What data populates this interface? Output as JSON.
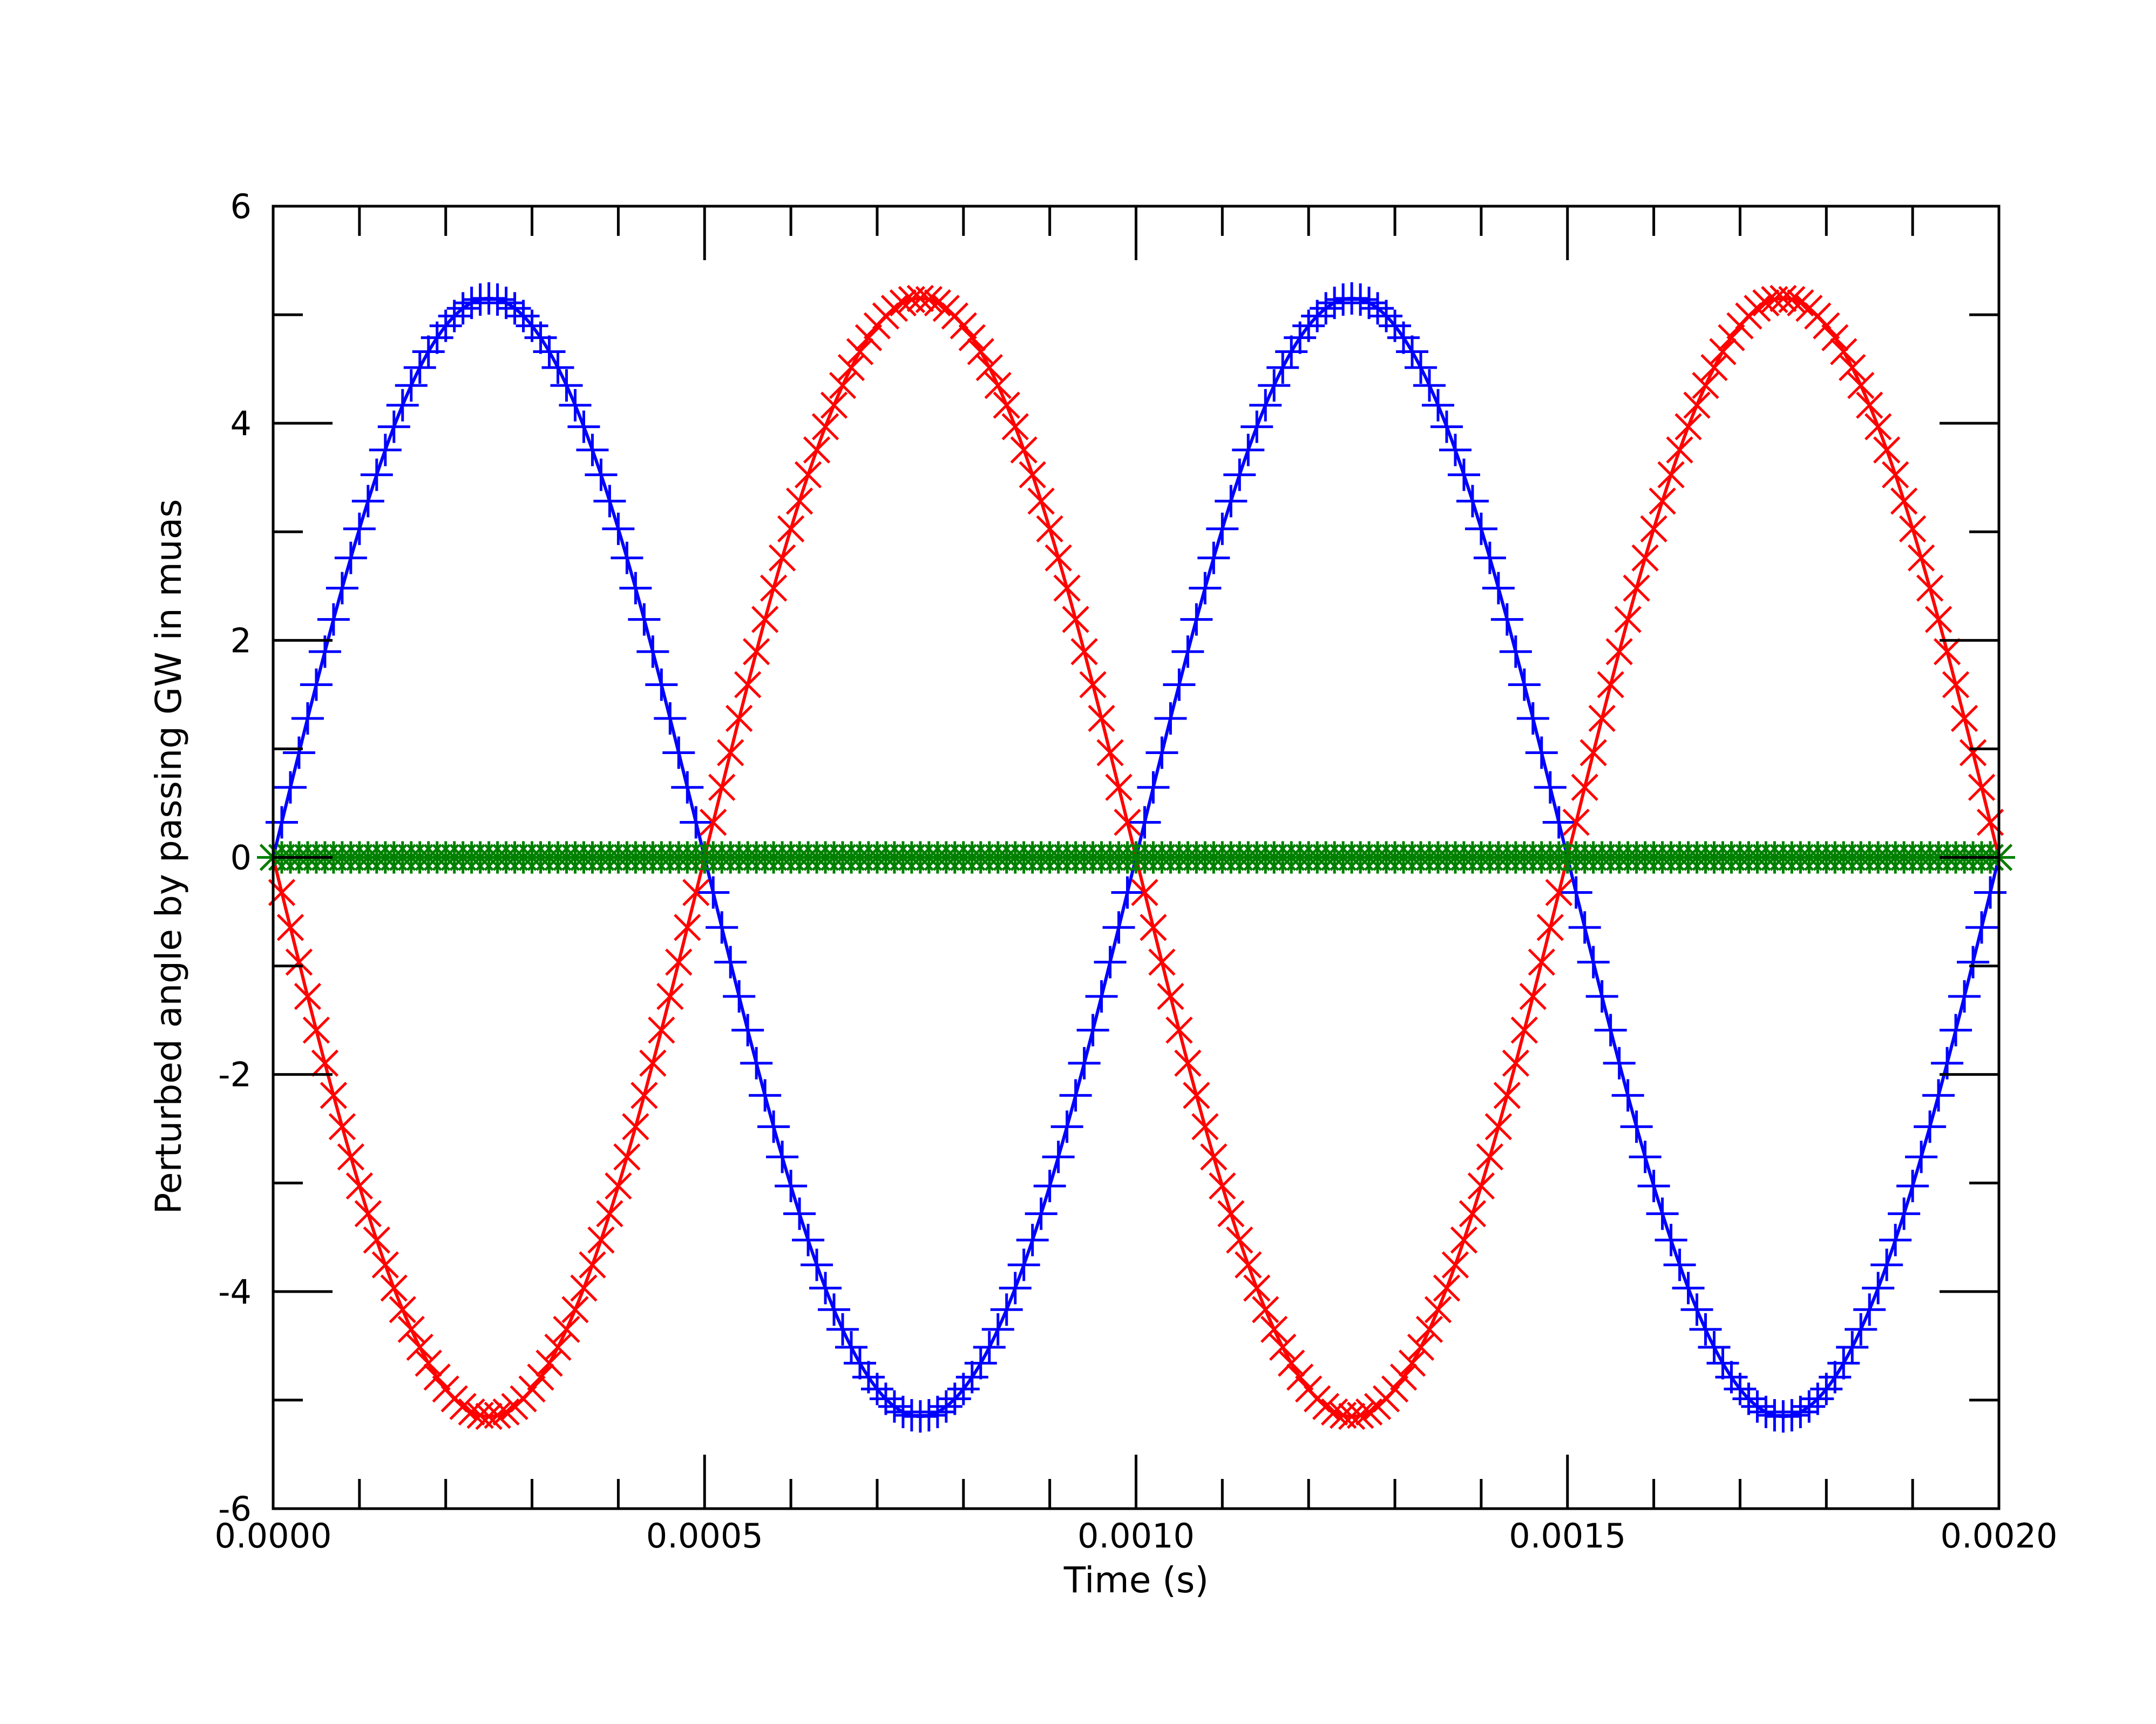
{
  "chart_data": {
    "type": "line",
    "title": "",
    "xlabel": "Time (s)",
    "ylabel": "Perturbed angle by passing GW in muas",
    "xlim": [
      0,
      0.002
    ],
    "ylim": [
      -6,
      6
    ],
    "x_ticks": [
      "0.0000",
      "0.0005",
      "0.0010",
      "0.0015",
      "0.0020"
    ],
    "y_ticks": [
      "6",
      "4",
      "2",
      "0",
      "-2",
      "-4",
      "-6"
    ],
    "grid": false,
    "legend": "none",
    "sample_count": 201,
    "series": [
      {
        "color": "#0000ff",
        "marker": "plus",
        "function": "5.15 * sin(2*pi*1000*t)",
        "amplitude": 5.15,
        "frequency_hz": 1000,
        "phase_sign": 1,
        "values": [
          0,
          5.15,
          0,
          -5.15,
          0,
          5.15,
          0,
          -5.15,
          0
        ],
        "x": [
          0,
          0.00025,
          0.0005,
          0.00075,
          0.001,
          0.00125,
          0.0015,
          0.00175,
          0.002
        ]
      },
      {
        "color": "#ff0000",
        "marker": "x",
        "function": "-5.15 * sin(2*pi*1000*t)",
        "amplitude": 5.15,
        "frequency_hz": 1000,
        "phase_sign": -1,
        "values": [
          0,
          -5.15,
          0,
          5.15,
          0,
          -5.15,
          0,
          5.15,
          0
        ],
        "x": [
          0,
          0.00025,
          0.0005,
          0.00075,
          0.001,
          0.00125,
          0.0015,
          0.00175,
          0.002
        ]
      },
      {
        "color": "#008000",
        "marker": "star",
        "function": "0",
        "amplitude": 0,
        "frequency_hz": 1000,
        "phase_sign": 1,
        "values": [
          0,
          0,
          0,
          0,
          0,
          0,
          0,
          0,
          0
        ],
        "x": [
          0,
          0.00025,
          0.0005,
          0.00075,
          0.001,
          0.00125,
          0.0015,
          0.00175,
          0.002
        ]
      }
    ],
    "zero_line_color": "#000000"
  }
}
